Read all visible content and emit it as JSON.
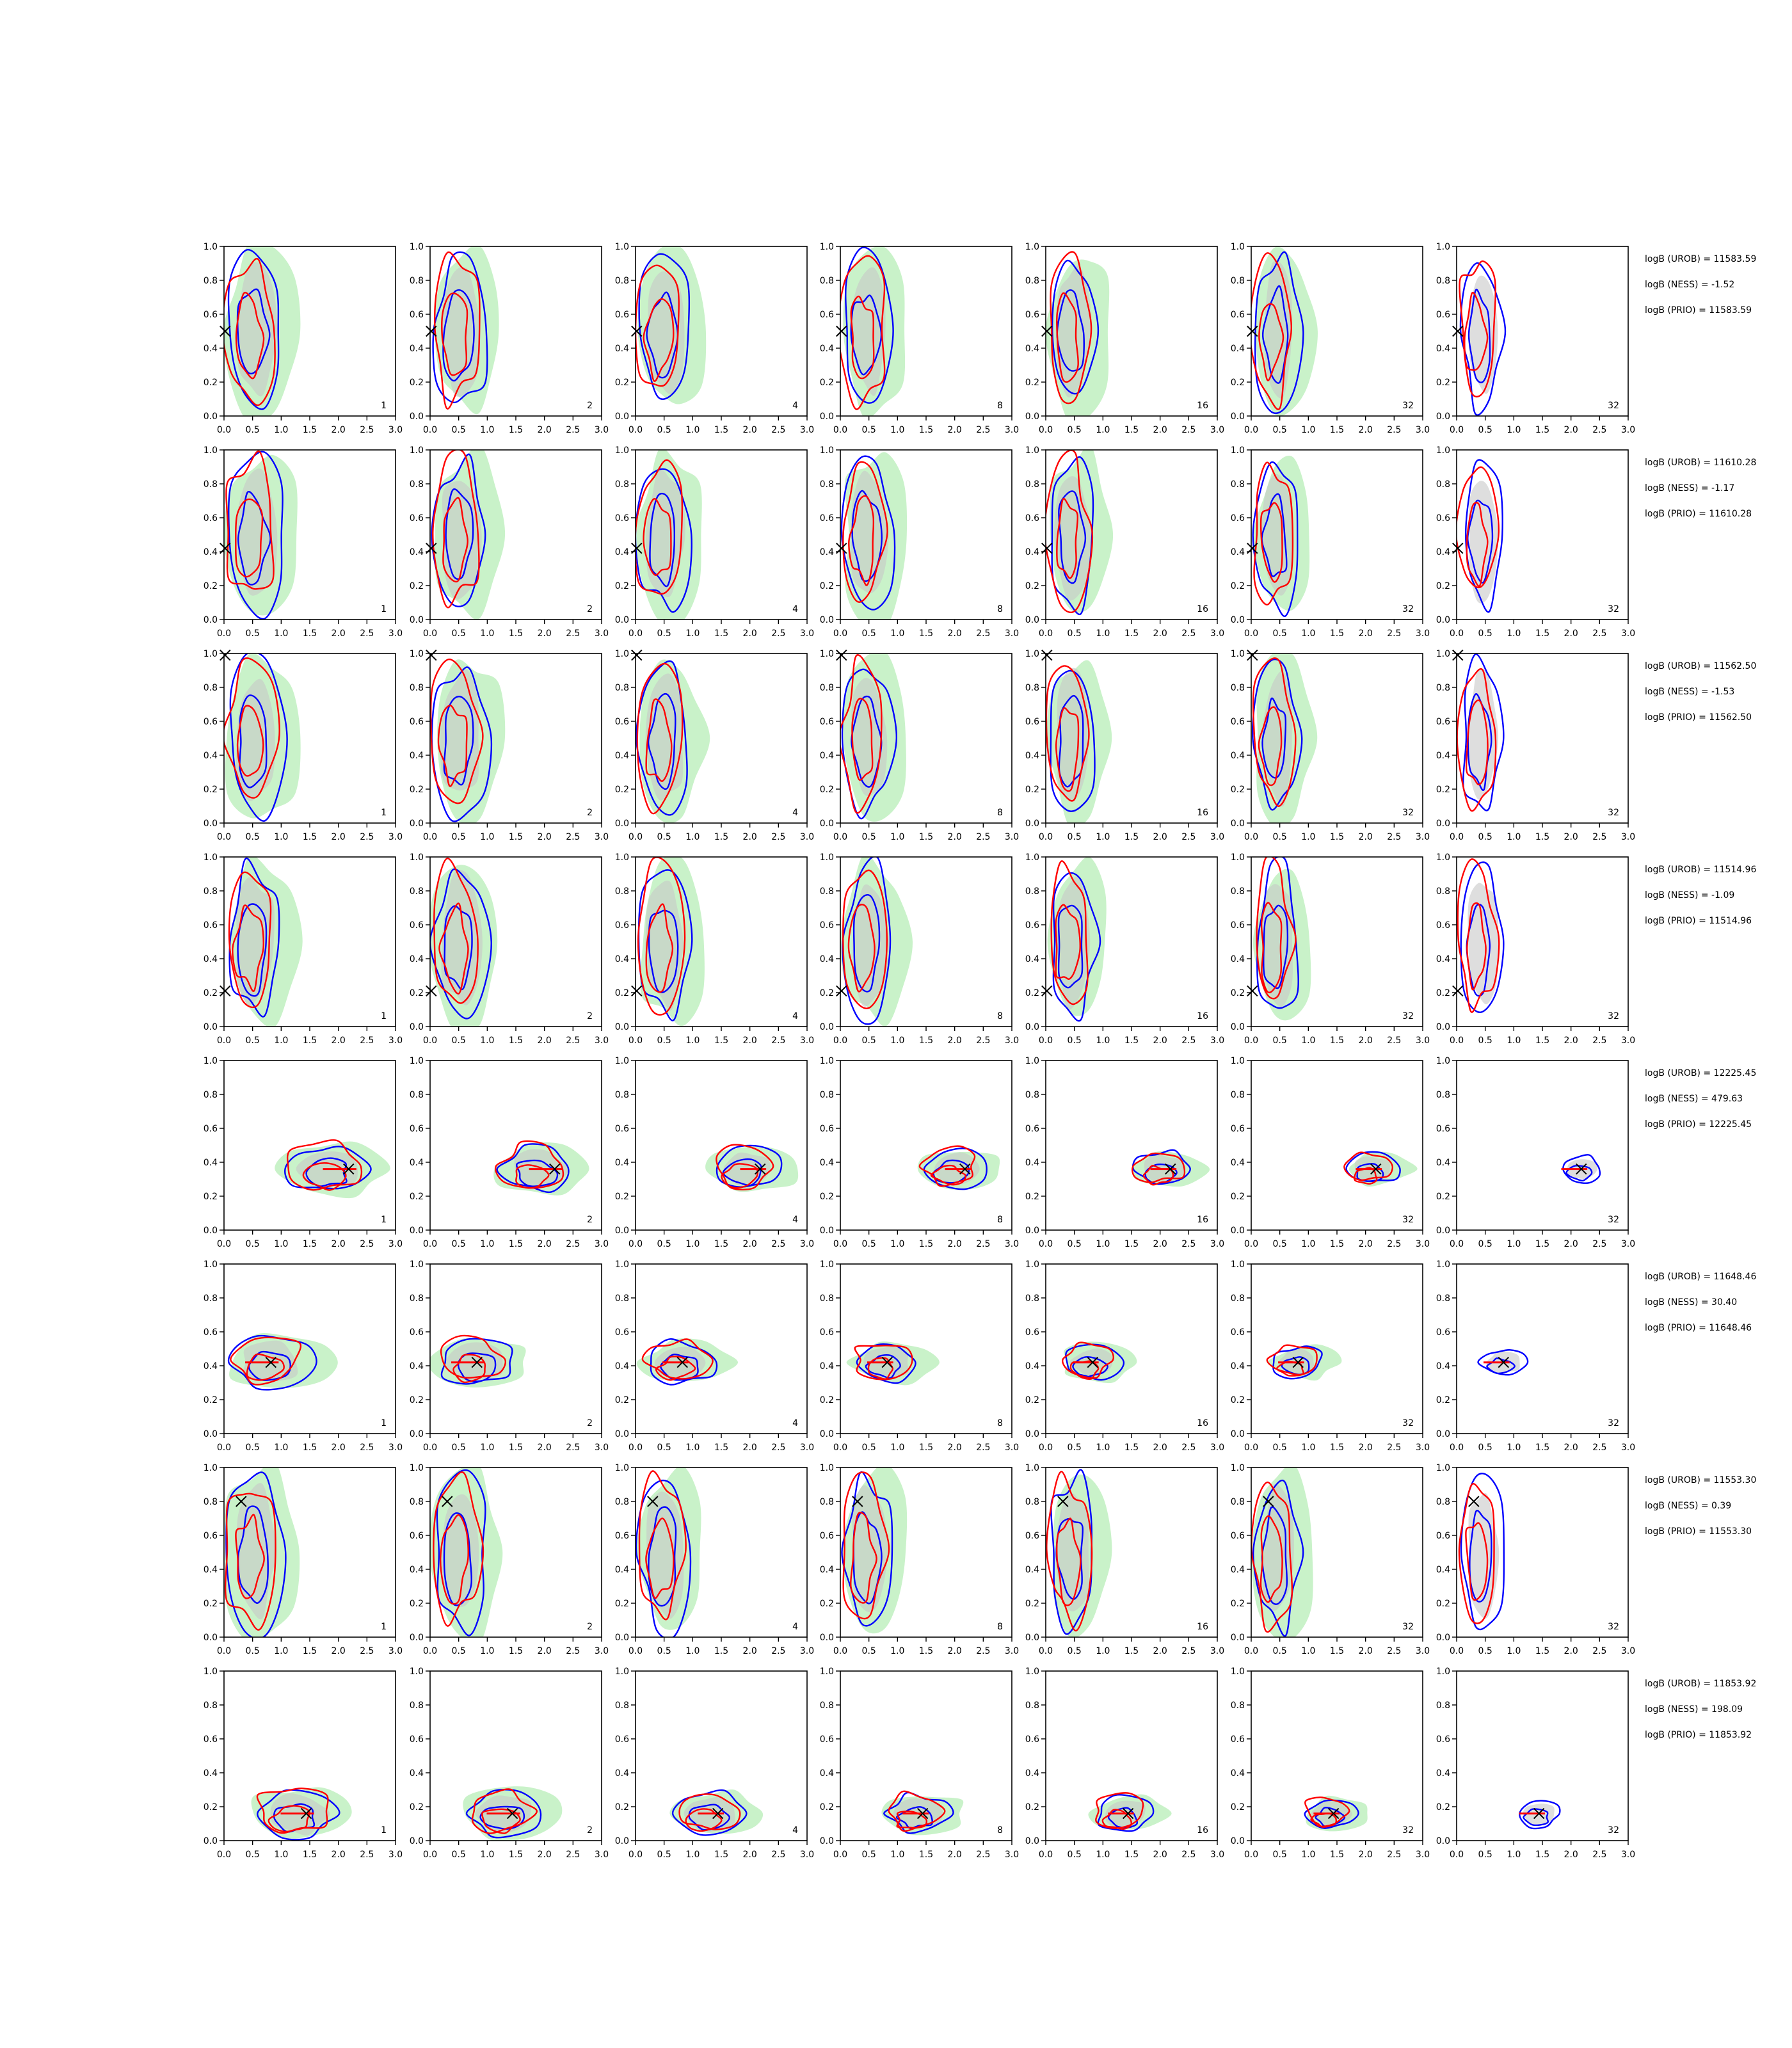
{
  "chart_data": {
    "type": "contour-grid",
    "rows": 8,
    "cols": 7,
    "xlim": [
      0,
      3
    ],
    "ylim": [
      0,
      1
    ],
    "xticks": [
      "0.0",
      "0.5",
      "1.0",
      "1.5",
      "2.0",
      "2.5",
      "3.0"
    ],
    "yticks": [
      "0.0",
      "0.2",
      "0.4",
      "0.6",
      "0.8",
      "1.0"
    ],
    "panel_labels": [
      "1",
      "2",
      "4",
      "8",
      "16",
      "32",
      "32"
    ],
    "colors": {
      "truth_line": "#ff0000",
      "contour_a": "#0000ff",
      "contour_b": "#ff0000",
      "fill_a": "#b7eeb7",
      "fill_b": "#c8c8c8"
    },
    "rows_data": [
      {
        "marker": [
          0.02,
          0.5
        ],
        "hline": false,
        "annotations": [
          "logB (UROB) = 11583.59",
          "logB (NESS) = -1.52",
          "logB (PRIO) = 11583.59"
        ]
      },
      {
        "marker": [
          0.02,
          0.42
        ],
        "hline": false,
        "annotations": [
          "logB (UROB) = 11610.28",
          "logB (NESS) = -1.17",
          "logB (PRIO) = 11610.28"
        ]
      },
      {
        "marker": [
          0.02,
          0.99
        ],
        "hline": false,
        "annotations": [
          "logB (UROB) = 11562.50",
          "logB (NESS) = -1.53",
          "logB (PRIO) = 11562.50"
        ]
      },
      {
        "marker": [
          0.02,
          0.21
        ],
        "hline": false,
        "annotations": [
          "logB (UROB) = 11514.96",
          "logB (NESS) = -1.09",
          "logB (PRIO) = 11514.96"
        ]
      },
      {
        "marker": [
          2.18,
          0.36
        ],
        "hline": true,
        "annotations": [
          "logB (UROB) = 12225.45",
          "logB (NESS) = 479.63",
          "logB (PRIO) = 12225.45"
        ]
      },
      {
        "marker": [
          0.82,
          0.42
        ],
        "hline": true,
        "annotations": [
          "logB (UROB) = 11648.46",
          "logB (NESS) = 30.40",
          "logB (PRIO) = 11648.46"
        ]
      },
      {
        "marker": [
          0.3,
          0.8
        ],
        "hline": false,
        "annotations": [
          "logB (UROB) = 11553.30",
          "logB (NESS) = 0.39",
          "logB (PRIO) = 11553.30"
        ]
      },
      {
        "marker": [
          1.44,
          0.16
        ],
        "hline": true,
        "annotations": [
          "logB (UROB) = 11853.92",
          "logB (NESS) = 198.09",
          "logB (PRIO) = 11853.92"
        ]
      }
    ]
  }
}
